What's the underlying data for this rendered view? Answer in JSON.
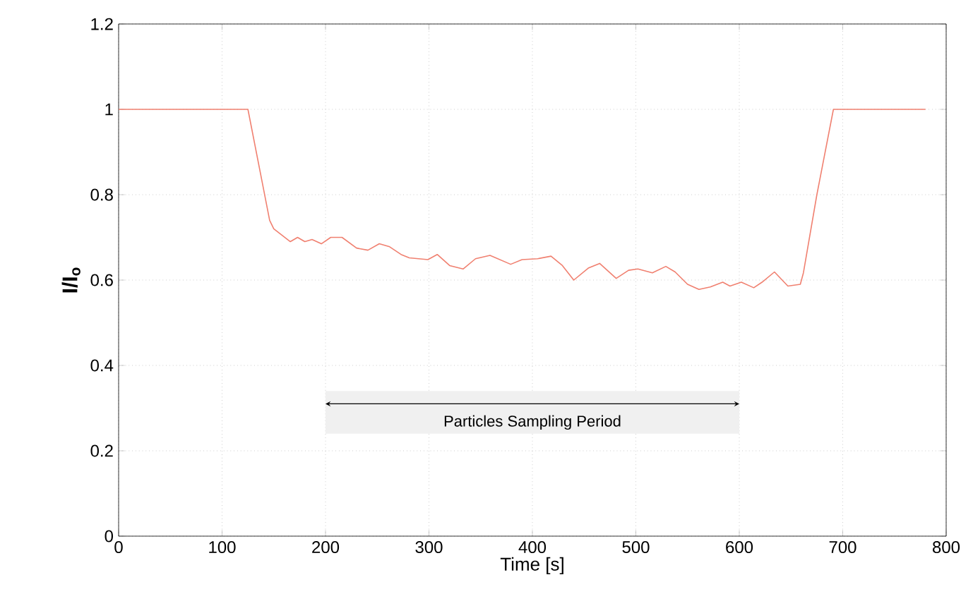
{
  "chart_data": {
    "type": "line",
    "xlabel": "Time [s]",
    "ylabel": "I/I$_{o}$",
    "x": [
      0,
      125,
      146,
      150,
      166,
      173,
      180,
      187,
      196,
      205,
      216,
      230,
      241,
      252,
      262,
      273,
      281,
      299,
      308,
      320,
      333,
      345,
      359,
      379,
      390,
      405,
      418,
      429,
      440,
      454,
      465,
      481,
      493,
      502,
      516,
      529,
      538,
      550,
      561,
      572,
      584,
      591,
      602,
      614,
      622,
      634,
      647,
      659,
      662,
      675,
      691,
      780
    ],
    "series": [
      {
        "color": "#f08070",
        "values": [
          1.0,
          1.0,
          0.74,
          0.72,
          0.69,
          0.7,
          0.69,
          0.695,
          0.685,
          0.7,
          0.7,
          0.675,
          0.67,
          0.685,
          0.678,
          0.66,
          0.652,
          0.648,
          0.66,
          0.634,
          0.626,
          0.65,
          0.658,
          0.637,
          0.648,
          0.65,
          0.656,
          0.634,
          0.6,
          0.628,
          0.639,
          0.604,
          0.623,
          0.626,
          0.617,
          0.632,
          0.619,
          0.59,
          0.578,
          0.584,
          0.595,
          0.586,
          0.595,
          0.582,
          0.595,
          0.619,
          0.586,
          0.59,
          0.617,
          0.8,
          1.0,
          1.0
        ]
      }
    ],
    "xlim": [
      0,
      800
    ],
    "ylim": [
      0,
      1.2
    ],
    "xticks": [
      0,
      100,
      200,
      300,
      400,
      500,
      600,
      700,
      800
    ],
    "yticks": [
      0,
      0.2,
      0.4,
      0.6,
      0.8,
      1,
      1.2
    ],
    "grid": true,
    "marker": "none",
    "line_style": "solid",
    "bands": [
      {
        "axis": "x",
        "from": 200,
        "to": 600,
        "label": "Particles Sampling Period",
        "color": "#f0f0f0"
      }
    ]
  }
}
